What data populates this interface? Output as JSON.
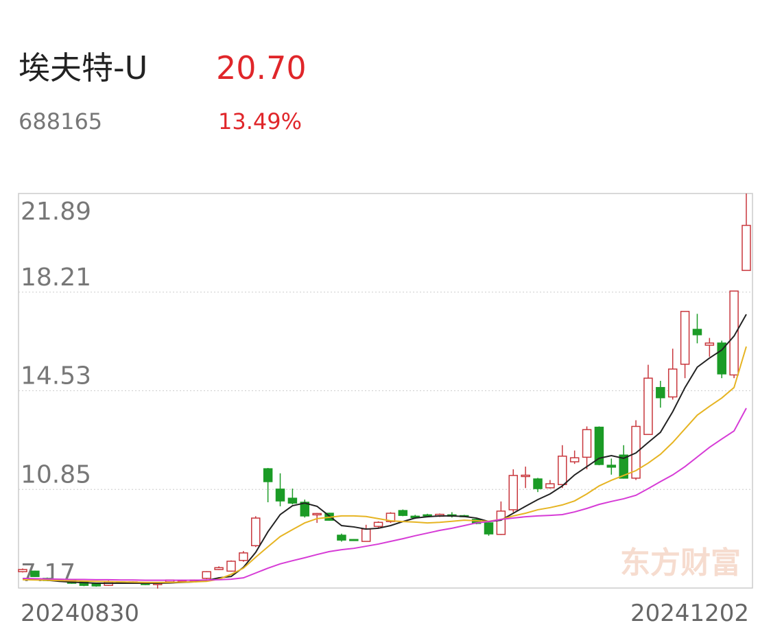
{
  "header": {
    "name": "埃夫特-U",
    "price": "20.70",
    "code": "688165",
    "change": "13.49%"
  },
  "chart_data": {
    "type": "candlestick",
    "categories": [
      "20240830",
      null,
      null,
      null,
      null,
      null,
      null,
      null,
      null,
      null,
      null,
      null,
      null,
      null,
      null,
      null,
      null,
      null,
      null,
      null,
      null,
      null,
      null,
      null,
      null,
      null,
      null,
      null,
      null,
      null,
      null,
      null,
      null,
      null,
      null,
      null,
      null,
      null,
      null,
      null,
      null,
      null,
      null,
      null,
      null,
      null,
      null,
      null,
      null,
      null,
      null,
      null,
      null,
      null,
      null,
      null,
      null,
      null,
      null,
      "20241202"
    ],
    "open": [
      7.78,
      7.8,
      7.53,
      7.48,
      7.45,
      7.4,
      7.35,
      7.27,
      7.4,
      7.38,
      7.38,
      7.3,
      7.4,
      7.45,
      7.44,
      7.53,
      7.86,
      7.8,
      8.2,
      8.75,
      11.62,
      10.86,
      10.52,
      10.37,
      9.9,
      9.96,
      9.14,
      8.98,
      8.91,
      9.47,
      9.65,
      10.06,
      9.85,
      9.9,
      9.85,
      9.9,
      9.87,
      9.73,
      9.6,
      9.17,
      10.09,
      11.33,
      11.24,
      10.91,
      11.03,
      11.88,
      12.05,
      13.17,
      11.75,
      12.13,
      11.27,
      12.9,
      14.65,
      14.3,
      15.52,
      16.82,
      16.23,
      16.31,
      15.12,
      19.02
    ],
    "high": [
      7.9,
      7.82,
      7.56,
      7.5,
      7.47,
      7.42,
      7.37,
      7.45,
      7.42,
      7.42,
      7.4,
      7.4,
      7.49,
      7.48,
      7.49,
      7.8,
      7.98,
      8.2,
      8.55,
      9.85,
      11.65,
      11.45,
      10.88,
      10.47,
      9.97,
      9.98,
      9.2,
      9.0,
      9.53,
      9.66,
      10.0,
      10.1,
      9.9,
      9.94,
      9.95,
      10.0,
      9.9,
      9.75,
      9.62,
      10.4,
      11.6,
      11.7,
      11.28,
      11.2,
      12.5,
      12.3,
      13.2,
      13.2,
      12.0,
      12.5,
      13.43,
      15.5,
      14.9,
      16.1,
      17.49,
      17.4,
      16.5,
      16.4,
      18.25,
      21.89
    ],
    "low": [
      7.75,
      7.58,
      7.43,
      7.43,
      7.33,
      7.24,
      7.22,
      7.25,
      7.33,
      7.36,
      7.28,
      7.15,
      7.38,
      7.43,
      7.42,
      7.5,
      7.84,
      7.78,
      8.15,
      8.7,
      10.37,
      10.22,
      10.29,
      9.8,
      9.6,
      9.68,
      8.9,
      8.93,
      8.9,
      9.42,
      9.6,
      9.85,
      9.75,
      9.83,
      9.82,
      9.8,
      9.82,
      9.55,
      9.12,
      9.15,
      10.0,
      10.9,
      10.75,
      10.88,
      10.9,
      11.8,
      11.6,
      11.75,
      11.4,
      11.25,
      11.2,
      12.9,
      13.9,
      14.2,
      15.0,
      16.3,
      15.8,
      15.0,
      15.0,
      19.02
    ],
    "close": [
      7.86,
      7.6,
      7.45,
      7.45,
      7.35,
      7.27,
      7.25,
      7.4,
      7.35,
      7.4,
      7.3,
      7.38,
      7.47,
      7.46,
      7.47,
      7.78,
      7.93,
      8.17,
      8.48,
      9.78,
      11.14,
      10.42,
      10.34,
      9.86,
      9.95,
      9.7,
      8.96,
      8.96,
      9.37,
      9.62,
      9.96,
      9.88,
      9.8,
      9.86,
      9.92,
      9.85,
      9.85,
      9.58,
      9.19,
      10.04,
      11.37,
      11.38,
      10.88,
      11.06,
      12.09,
      12.03,
      13.08,
      11.78,
      11.68,
      11.27,
      13.2,
      15.0,
      14.27,
      15.34,
      17.49,
      16.62,
      16.31,
      15.16,
      18.25,
      20.7
    ],
    "up_color": "#c8363c",
    "down_color": "#1b9b26",
    "lines": [
      {
        "color": "#222222",
        "values": [
          7.53,
          7.5,
          7.46,
          7.42,
          7.39,
          7.37,
          7.35,
          7.35,
          7.35,
          7.35,
          7.35,
          7.35,
          7.36,
          7.38,
          7.4,
          7.45,
          7.55,
          7.6,
          7.94,
          8.5,
          9.27,
          9.91,
          10.24,
          10.34,
          10.22,
          9.86,
          9.5,
          9.45,
          9.37,
          9.4,
          9.5,
          9.65,
          9.78,
          9.83,
          9.86,
          9.86,
          9.84,
          9.78,
          9.65,
          9.7,
          9.96,
          10.22,
          10.47,
          10.68,
          10.98,
          11.39,
          11.7,
          12.01,
          12.11,
          12.01,
          12.21,
          12.6,
          12.98,
          13.75,
          14.65,
          15.41,
          15.75,
          16.05,
          16.57,
          17.38
        ]
      },
      {
        "color": "#e6b422",
        "values": [
          7.48,
          7.47,
          7.46,
          7.45,
          7.44,
          7.43,
          7.42,
          7.41,
          7.4,
          7.39,
          7.38,
          7.38,
          7.38,
          7.39,
          7.4,
          7.42,
          7.5,
          7.68,
          7.91,
          8.32,
          8.71,
          9.09,
          9.35,
          9.6,
          9.76,
          9.81,
          9.86,
          9.86,
          9.84,
          9.76,
          9.68,
          9.65,
          9.63,
          9.6,
          9.62,
          9.66,
          9.7,
          9.68,
          9.66,
          9.73,
          9.86,
          9.96,
          10.09,
          10.17,
          10.27,
          10.42,
          10.68,
          10.98,
          11.19,
          11.37,
          11.55,
          11.83,
          12.16,
          12.6,
          13.11,
          13.62,
          13.95,
          14.26,
          14.65,
          16.18
        ]
      },
      {
        "color": "#d63bd6",
        "values": [
          7.53,
          7.52,
          7.51,
          7.5,
          7.49,
          7.49,
          7.48,
          7.48,
          7.47,
          7.47,
          7.46,
          7.46,
          7.46,
          7.46,
          7.46,
          7.47,
          7.48,
          7.5,
          7.55,
          7.73,
          7.91,
          8.07,
          8.19,
          8.3,
          8.42,
          8.53,
          8.6,
          8.65,
          8.73,
          8.81,
          8.91,
          9.01,
          9.12,
          9.22,
          9.32,
          9.4,
          9.5,
          9.6,
          9.65,
          9.73,
          9.78,
          9.83,
          9.86,
          9.88,
          9.91,
          10.01,
          10.14,
          10.29,
          10.4,
          10.5,
          10.63,
          10.88,
          11.14,
          11.39,
          11.7,
          12.06,
          12.42,
          12.73,
          13.03,
          13.88
        ]
      }
    ],
    "ylim": [
      7.17,
      21.89
    ],
    "yticks": [
      21.89,
      18.21,
      14.53,
      10.85,
      7.17
    ],
    "grid": true,
    "watermark": "东方财富"
  }
}
